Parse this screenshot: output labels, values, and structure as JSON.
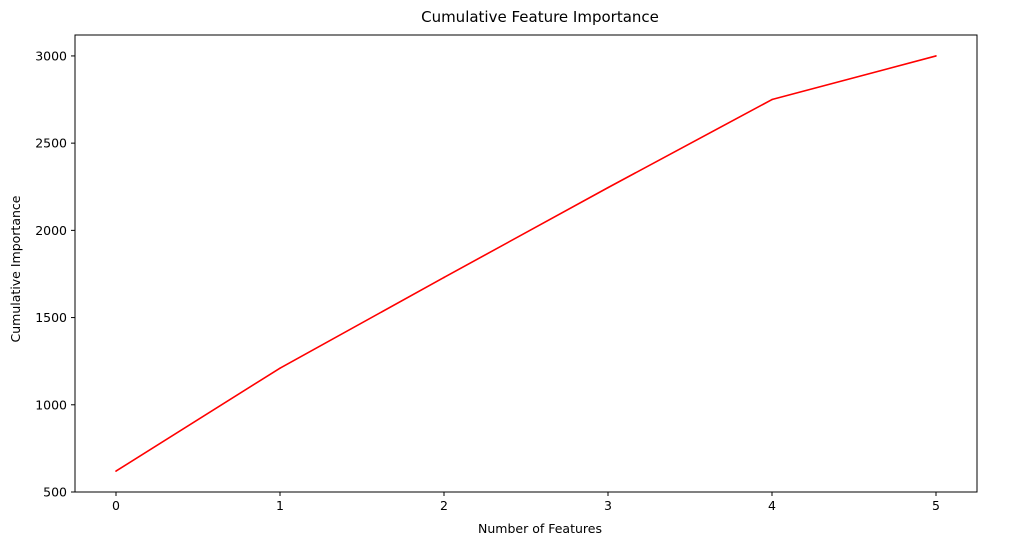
{
  "chart_data": {
    "type": "line",
    "title": "Cumulative Feature Importance",
    "xlabel": "Number of Features",
    "ylabel": "Cumulative Importance",
    "x": [
      0,
      1,
      2,
      3,
      4,
      5
    ],
    "series": [
      {
        "values": [
          620,
          1210,
          1730,
          2245,
          2750,
          3000
        ],
        "color": "#ff0000"
      }
    ],
    "xlim": [
      -0.25,
      5.25
    ],
    "ylim": [
      500,
      3120
    ],
    "xticks": [
      0,
      1,
      2,
      3,
      4,
      5
    ],
    "yticks": [
      500,
      1000,
      1500,
      2000,
      2500,
      3000
    ],
    "grid": false
  }
}
